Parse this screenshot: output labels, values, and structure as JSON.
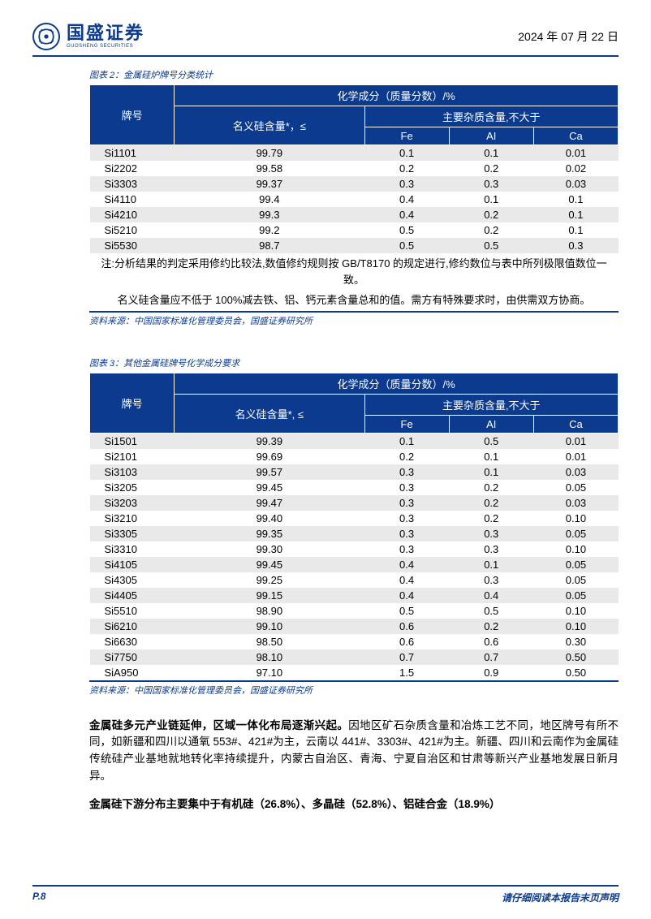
{
  "header": {
    "company_cn": "国盛证券",
    "company_en": "GUOSHENG SECURITIES",
    "date": "2024 年 07 月 22 日"
  },
  "table1": {
    "caption": "图表 2：金属硅炉牌号分类统计",
    "header_top": "化学成分（质量分数）/%",
    "header_grade": "牌号",
    "header_si": "名义硅含量*，≤",
    "header_impurity": "主要杂质含量,不大于",
    "header_fe": "Fe",
    "header_al": "AI",
    "header_ca": "Ca",
    "rows": [
      {
        "grade": "Si1101",
        "si": "99.79",
        "fe": "0.1",
        "al": "0.1",
        "ca": "0.01"
      },
      {
        "grade": "Si2202",
        "si": "99.58",
        "fe": "0.2",
        "al": "0.2",
        "ca": "0.02"
      },
      {
        "grade": "Si3303",
        "si": "99.37",
        "fe": "0.3",
        "al": "0.3",
        "ca": "0.03"
      },
      {
        "grade": "Si4110",
        "si": "99.4",
        "fe": "0.4",
        "al": "0.1",
        "ca": "0.1"
      },
      {
        "grade": "Si4210",
        "si": "99.3",
        "fe": "0.4",
        "al": "0.2",
        "ca": "0.1"
      },
      {
        "grade": "Si5210",
        "si": "99.2",
        "fe": "0.5",
        "al": "0.2",
        "ca": "0.1"
      },
      {
        "grade": "Si5530",
        "si": "98.7",
        "fe": "0.5",
        "al": "0.5",
        "ca": "0.3"
      }
    ],
    "note1": "注:分析结果的判定采用修约比较法,数值修约规则按 GB/T8170 的规定进行,修约数位与表中所列极限值数位一致。",
    "note2": "名义硅含量应不低于 100%减去铁、铝、钙元素含量总和的值。需方有特殊要求时，由供需双方协商。",
    "source": "资料来源：中国国家标准化管理委员会，国盛证券研究所"
  },
  "table2": {
    "caption": "图表 3：其他金属硅牌号化学成分要求",
    "header_top": "化学成分（质量分数）/%",
    "header_grade": "牌号",
    "header_si": "名义硅含量*, ≤",
    "header_impurity": "主要杂质含量,不大于",
    "header_fe": "Fe",
    "header_al": "AI",
    "header_ca": "Ca",
    "rows": [
      {
        "grade": "Si1501",
        "si": "99.39",
        "fe": "0.1",
        "al": "0.5",
        "ca": "0.01"
      },
      {
        "grade": "Si2101",
        "si": "99.69",
        "fe": "0.2",
        "al": "0.1",
        "ca": "0.01"
      },
      {
        "grade": "Si3103",
        "si": "99.57",
        "fe": "0.3",
        "al": "0.1",
        "ca": "0.03"
      },
      {
        "grade": "Si3205",
        "si": "99.45",
        "fe": "0.3",
        "al": "0.2",
        "ca": "0.05"
      },
      {
        "grade": "Si3203",
        "si": "99.47",
        "fe": "0.3",
        "al": "0.2",
        "ca": "0.03"
      },
      {
        "grade": "Si3210",
        "si": "99.40",
        "fe": "0.3",
        "al": "0.2",
        "ca": "0.10"
      },
      {
        "grade": "Si3305",
        "si": "99.35",
        "fe": "0.3",
        "al": "0.3",
        "ca": "0.05"
      },
      {
        "grade": "Si3310",
        "si": "99.30",
        "fe": "0.3",
        "al": "0.3",
        "ca": "0.10"
      },
      {
        "grade": "Si4105",
        "si": "99.45",
        "fe": "0.4",
        "al": "0.1",
        "ca": "0.05"
      },
      {
        "grade": "Si4305",
        "si": "99.25",
        "fe": "0.4",
        "al": "0.3",
        "ca": "0.05"
      },
      {
        "grade": "Si4405",
        "si": "99.15",
        "fe": "0.4",
        "al": "0.4",
        "ca": "0.05"
      },
      {
        "grade": "Si5510",
        "si": "98.90",
        "fe": "0.5",
        "al": "0.5",
        "ca": "0.10"
      },
      {
        "grade": "Si6210",
        "si": "99.10",
        "fe": "0.6",
        "al": "0.2",
        "ca": "0.10"
      },
      {
        "grade": "Si6630",
        "si": "98.50",
        "fe": "0.6",
        "al": "0.6",
        "ca": "0.30"
      },
      {
        "grade": "Si7750",
        "si": "98.10",
        "fe": "0.7",
        "al": "0.7",
        "ca": "0.50"
      },
      {
        "grade": "SiA950",
        "si": "97.10",
        "fe": "1.5",
        "al": "0.9",
        "ca": "0.50"
      }
    ],
    "source": "资料来源：中国国家标准化管理委员会，国盛证券研究所"
  },
  "paragraph1": {
    "bold": "金属硅多元产业链延伸，区域一体化布局逐渐兴起。",
    "rest": "因地区矿石杂质含量和冶炼工艺不同，地区牌号有所不同，如新疆和四川以通氧 553#、421#为主，云南以 441#、3303#、421#为主。新疆、四川和云南作为金属硅传统硅产业基地就地转化率持续提升，内蒙古自治区、青海、宁夏自治区和甘肃等新兴产业基地发展日新月异。"
  },
  "paragraph2": {
    "bold": "金属硅下游分布主要集中于有机硅（26.8%）、多晶硅（52.8%）、铝硅合金（18.9%）"
  },
  "footer": {
    "page": "P.8",
    "disclaimer": "请仔细阅读本报告末页声明"
  },
  "style": {
    "brand_color": "#0b3a8f",
    "row_even_bg": "#e9e9e9",
    "row_odd_bg": "#ffffff",
    "text_color": "#000000",
    "header_text_color": "#ffffff"
  }
}
